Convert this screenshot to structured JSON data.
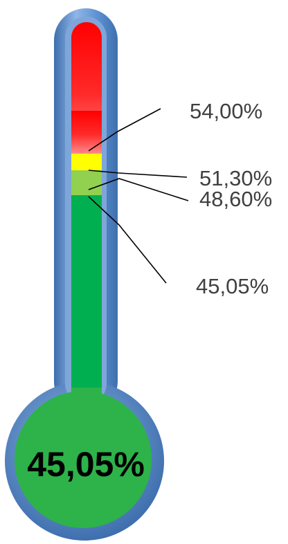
{
  "chart_data": {
    "type": "thermometer",
    "value": 45.05,
    "value_label": "45,05%",
    "colors": {
      "tube_border": "#5b8fd0",
      "tube_border_dark": "#3f6fae",
      "band_red": "#ff0000",
      "band_yellow": "#ffff00",
      "band_light_green": "#92d050",
      "band_green": "#00b050",
      "bulb": "#2db34a",
      "label_text": "#404040",
      "value_text": "#000000"
    },
    "thresholds": [
      {
        "value": 54.0,
        "label": "54,00%",
        "band": "red"
      },
      {
        "value": 51.3,
        "label": "51,30%",
        "band": "yellow"
      },
      {
        "value": 48.6,
        "label": "48,60%",
        "band": "light-green"
      },
      {
        "value": 45.05,
        "label": "45,05%",
        "band": "green"
      }
    ]
  }
}
